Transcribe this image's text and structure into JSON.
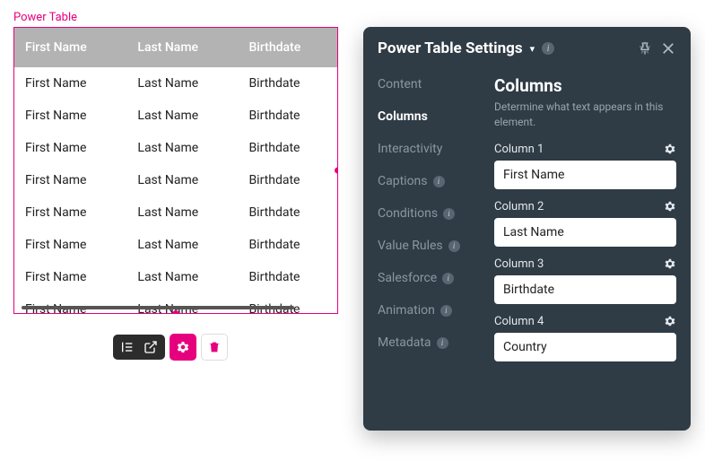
{
  "table": {
    "label": "Power Table",
    "headers": [
      "First Name",
      "Last Name",
      "Birthdate"
    ],
    "rows": [
      [
        "First Name",
        "Last Name",
        "Birthdate"
      ],
      [
        "First Name",
        "Last Name",
        "Birthdate"
      ],
      [
        "First Name",
        "Last Name",
        "Birthdate"
      ],
      [
        "First Name",
        "Last Name",
        "Birthdate"
      ],
      [
        "First Name",
        "Last Name",
        "Birthdate"
      ],
      [
        "First Name",
        "Last Name",
        "Birthdate"
      ],
      [
        "First Name",
        "Last Name",
        "Birthdate"
      ],
      [
        "First Name",
        "Last Name",
        "Birthdate"
      ]
    ]
  },
  "panel": {
    "title": "Power Table Settings",
    "nav": {
      "content": "Content",
      "columns": "Columns",
      "interactivity": "Interactivity",
      "captions": "Captions",
      "conditions": "Conditions",
      "value_rules": "Value Rules",
      "salesforce": "Salesforce",
      "animation": "Animation",
      "metadata": "Metadata"
    },
    "section": {
      "title": "Columns",
      "subtitle": "Determine what text appears in this element.",
      "fields": [
        {
          "label": "Column 1",
          "value": "First Name"
        },
        {
          "label": "Column 2",
          "value": "Last Name"
        },
        {
          "label": "Column 3",
          "value": "Birthdate"
        },
        {
          "label": "Column 4",
          "value": "Country"
        }
      ]
    }
  },
  "colors": {
    "accent": "#e6007e",
    "panel_bg": "#2f3b45",
    "header_bg": "#b3b3b3",
    "nav_muted": "#8a97a1"
  }
}
